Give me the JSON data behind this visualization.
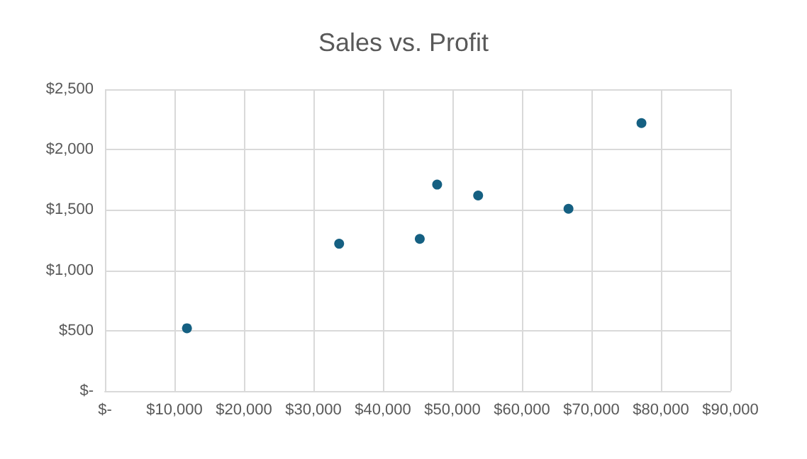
{
  "chart_data": {
    "type": "scatter",
    "title": "Sales vs. Profit",
    "x": [
      11800,
      33700,
      45300,
      47800,
      53700,
      66700,
      77200
    ],
    "values": [
      520,
      1220,
      1260,
      1710,
      1620,
      1510,
      2220
    ],
    "color": "#156082",
    "marker": "circle",
    "grid": true,
    "xlim": [
      0,
      90000
    ],
    "xticks": [
      {
        "value": 0,
        "label": "$-"
      },
      {
        "value": 10000,
        "label": "$10,000"
      },
      {
        "value": 20000,
        "label": "$20,000"
      },
      {
        "value": 30000,
        "label": "$30,000"
      },
      {
        "value": 40000,
        "label": "$40,000"
      },
      {
        "value": 50000,
        "label": "$50,000"
      },
      {
        "value": 60000,
        "label": "$60,000"
      },
      {
        "value": 70000,
        "label": "$70,000"
      },
      {
        "value": 80000,
        "label": "$80,000"
      },
      {
        "value": 90000,
        "label": "$90,000"
      }
    ],
    "ylim": [
      0,
      2500
    ],
    "yticks": [
      {
        "value": 0,
        "label": "$-"
      },
      {
        "value": 500,
        "label": "$500"
      },
      {
        "value": 1000,
        "label": "$1,000"
      },
      {
        "value": 1500,
        "label": "$1,500"
      },
      {
        "value": 2000,
        "label": "$2,000"
      },
      {
        "value": 2500,
        "label": "$2,500"
      }
    ]
  }
}
